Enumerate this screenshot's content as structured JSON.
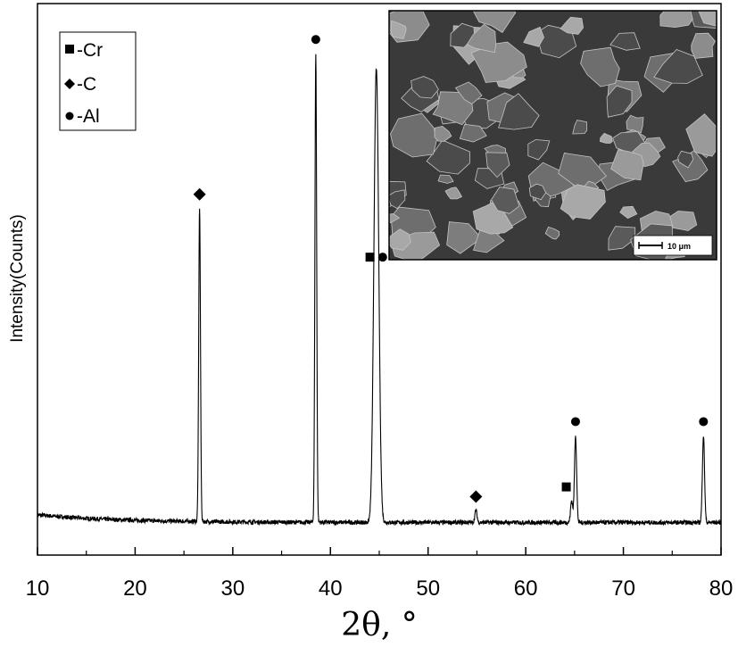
{
  "chart_data": {
    "type": "line",
    "xlabel": "2θ, °",
    "ylabel": "Intensity(Counts)",
    "xlim": [
      10,
      80
    ],
    "x_ticks": [
      10,
      20,
      30,
      40,
      50,
      60,
      70,
      80
    ],
    "y_ticks_shown": false,
    "grid": false,
    "legend": {
      "position": "top-left",
      "entries": [
        {
          "marker": "square",
          "label": "-Cr"
        },
        {
          "marker": "diamond",
          "label": "-C"
        },
        {
          "marker": "circle",
          "label": "-Al"
        }
      ]
    },
    "baseline": 1.2,
    "peaks": [
      {
        "x": 26.6,
        "height": 65.0,
        "marker": "diamond",
        "phase": "C"
      },
      {
        "x": 38.5,
        "height": 97.0,
        "marker": "circle",
        "phase": "Al"
      },
      {
        "x": 44.6,
        "height": 52.0,
        "marker": "square",
        "phase": "Cr"
      },
      {
        "x": 44.8,
        "height": 52.0,
        "marker": "circle",
        "phase": "Al"
      },
      {
        "x": 54.9,
        "height": 2.5,
        "marker": "diamond",
        "phase": "C"
      },
      {
        "x": 64.7,
        "height": 4.5,
        "marker": "square",
        "phase": "Cr"
      },
      {
        "x": 65.1,
        "height": 18.0,
        "marker": "circle",
        "phase": "Al"
      },
      {
        "x": 78.2,
        "height": 18.0,
        "marker": "circle",
        "phase": "Al"
      }
    ],
    "inset": {
      "type": "micrograph",
      "position": "top-right",
      "scale_bar_label": "10 μm"
    }
  }
}
